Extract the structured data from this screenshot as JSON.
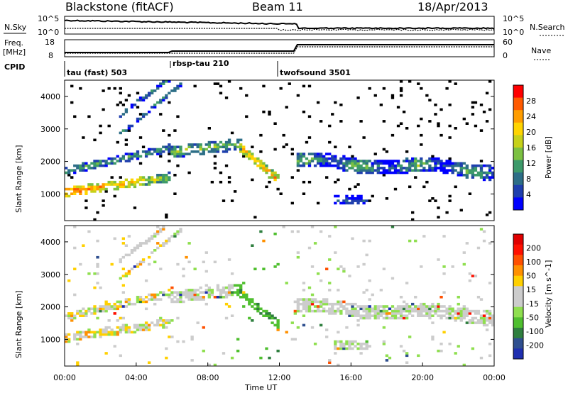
{
  "header": {
    "radar": "Blackstone (fitACF)",
    "beam": "Beam 11",
    "date": "18/Apr/2013"
  },
  "panels": {
    "noise": {
      "left_label": "N.Sky",
      "right_label": "N.Search",
      "left_ticks": [
        "10^5",
        "10^0"
      ],
      "right_ticks": [
        "10^5",
        "10^0"
      ]
    },
    "freq": {
      "left_label_1": "Freq.",
      "left_label_2": "[MHz]",
      "left_ticks": [
        "18",
        "8"
      ],
      "right_label": "Nave",
      "right_ticks": [
        "60",
        "0"
      ]
    },
    "cpid": {
      "label": "CPID",
      "segments": [
        "tau (fast) 503",
        "rbsp-tau 210",
        "twofsound 3501"
      ]
    }
  },
  "chart_data": [
    {
      "type": "heatmap",
      "name": "power",
      "ylabel": "Slant Range [km]",
      "ylim": [
        180,
        4500
      ],
      "yticks": [
        1000,
        2000,
        3000,
        4000
      ],
      "xlim": [
        0,
        24
      ],
      "colorbar": {
        "label": "Power [dB]",
        "ticks": [
          "28",
          "24",
          "20",
          "16",
          "12",
          "8",
          "4"
        ],
        "colors": [
          "#0000ff",
          "#1f3fae",
          "#2d6e87",
          "#3d9a6a",
          "#7cc142",
          "#c6d11a",
          "#ffd400",
          "#ff9d00",
          "#ff5a00",
          "#ff0000"
        ]
      }
    },
    {
      "type": "heatmap",
      "name": "velocity",
      "ylabel": "Slant Range [km]",
      "ylim": [
        180,
        4500
      ],
      "yticks": [
        1000,
        2000,
        3000,
        4000
      ],
      "xlim": [
        0,
        24
      ],
      "xticks": [
        "00:00",
        "04:00",
        "08:00",
        "12:00",
        "16:00",
        "20:00",
        "00:00"
      ],
      "xlabel": "Time UT",
      "colorbar": {
        "label": "Velocity [m s^-1]",
        "ticks": [
          "200",
          "100",
          "50",
          "15",
          "-15",
          "-50",
          "-100",
          "-200"
        ],
        "colors": [
          "#1f2fb0",
          "#2f4f8f",
          "#2f7f3f",
          "#4fbf2f",
          "#8fdf4f",
          "#cccccc",
          "#cccccc",
          "#ffd000",
          "#ff9000",
          "#ff5000",
          "#ff1000",
          "#e00000"
        ]
      }
    }
  ]
}
